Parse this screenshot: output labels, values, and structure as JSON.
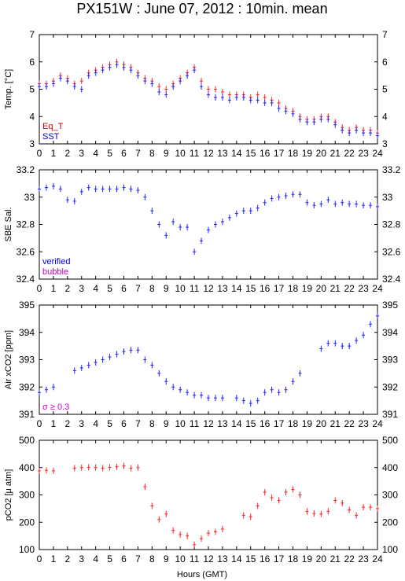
{
  "title": "PX151W : June 07, 2012 : 10min. mean",
  "x_axis": {
    "label": "Hours (GMT)",
    "min": 0,
    "max": 24,
    "ticks": [
      0,
      1,
      2,
      3,
      4,
      5,
      6,
      7,
      8,
      9,
      10,
      11,
      12,
      13,
      14,
      15,
      16,
      17,
      18,
      19,
      20,
      21,
      22,
      23,
      24
    ]
  },
  "chart_data": [
    {
      "type": "scatter",
      "id": "temp",
      "ylabel": "Temp. [°C]",
      "ylim": [
        3,
        7
      ],
      "yticks": [
        3,
        4,
        5,
        6,
        7
      ],
      "legend_entries": [
        {
          "text": "Eq_T",
          "color": "#cc0000"
        },
        {
          "text": "SST",
          "color": "#0000cc"
        }
      ],
      "series": [
        {
          "name": "Eq_T",
          "color": "#ff2020",
          "x": [
            0,
            0.5,
            1,
            1.5,
            2,
            2.5,
            3,
            3.5,
            4,
            4.5,
            5,
            5.5,
            6,
            6.5,
            7,
            7.5,
            8,
            8.5,
            9,
            9.5,
            10,
            10.5,
            11,
            11.5,
            12,
            12.5,
            13,
            13.5,
            14,
            14.5,
            15,
            15.5,
            16,
            16.5,
            17,
            17.5,
            18,
            18.5,
            19,
            19.5,
            20,
            20.5,
            21,
            21.5,
            22,
            22.5,
            23,
            23.5,
            24
          ],
          "y": [
            5.2,
            5.2,
            5.3,
            5.5,
            5.4,
            5.2,
            5.3,
            5.6,
            5.7,
            5.8,
            5.9,
            6.0,
            5.9,
            5.8,
            5.6,
            5.4,
            5.3,
            5.1,
            5.0,
            5.2,
            5.4,
            5.6,
            5.8,
            5.3,
            5.0,
            5.0,
            4.9,
            4.8,
            4.8,
            4.8,
            4.7,
            4.8,
            4.7,
            4.6,
            4.5,
            4.3,
            4.2,
            4.0,
            3.9,
            3.9,
            4.0,
            4.0,
            3.8,
            3.6,
            3.5,
            3.6,
            3.5,
            3.5,
            3.4
          ]
        },
        {
          "name": "SST",
          "color": "#2020ff",
          "x": [
            0,
            0.5,
            1,
            1.5,
            2,
            2.5,
            3,
            3.5,
            4,
            4.5,
            5,
            5.5,
            6,
            6.5,
            7,
            7.5,
            8,
            8.5,
            9,
            9.5,
            10,
            10.5,
            11,
            11.5,
            12,
            12.5,
            13,
            13.5,
            14,
            14.5,
            15,
            15.5,
            16,
            16.5,
            17,
            17.5,
            18,
            18.5,
            19,
            19.5,
            20,
            20.5,
            21,
            21.5,
            22,
            22.5,
            23,
            23.5,
            24
          ],
          "y": [
            5.1,
            5.1,
            5.2,
            5.4,
            5.3,
            5.1,
            5.0,
            5.5,
            5.6,
            5.7,
            5.8,
            5.9,
            5.8,
            5.7,
            5.5,
            5.3,
            5.2,
            4.9,
            4.8,
            5.1,
            5.3,
            5.5,
            5.7,
            5.1,
            4.8,
            4.7,
            4.7,
            4.6,
            4.7,
            4.7,
            4.6,
            4.6,
            4.5,
            4.5,
            4.3,
            4.2,
            4.1,
            3.9,
            3.8,
            3.8,
            3.9,
            3.9,
            3.7,
            3.5,
            3.4,
            3.5,
            3.4,
            3.4,
            3.3
          ]
        }
      ]
    },
    {
      "type": "scatter",
      "id": "sal",
      "ylabel": "SBE Sal.",
      "ylim": [
        32.4,
        33.2
      ],
      "yticks": [
        32.4,
        32.6,
        32.8,
        33,
        33.2
      ],
      "legend_entries": [
        {
          "text": "verified",
          "color": "#0000cc"
        },
        {
          "text": "bubble",
          "color": "#cc00cc"
        }
      ],
      "series": [
        {
          "name": "verified",
          "color": "#2020ff",
          "x": [
            0,
            0.5,
            1,
            1.5,
            2,
            2.5,
            3,
            3.5,
            4,
            4.5,
            5,
            5.5,
            6,
            6.5,
            7,
            7.5,
            8,
            8.5,
            9,
            9.5,
            10,
            10.5,
            11,
            11.5,
            12,
            12.5,
            13,
            13.5,
            14,
            14.5,
            15,
            15.5,
            16,
            16.5,
            17,
            17.5,
            18,
            18.5,
            19,
            19.5,
            20,
            20.5,
            21,
            21.5,
            22,
            22.5,
            23,
            23.5,
            24
          ],
          "y": [
            33.06,
            33.07,
            33.08,
            33.06,
            32.98,
            32.97,
            33.04,
            33.07,
            33.06,
            33.06,
            33.06,
            33.06,
            33.07,
            33.06,
            33.05,
            33.0,
            32.9,
            32.8,
            32.72,
            32.82,
            32.78,
            32.78,
            32.6,
            32.68,
            32.76,
            32.8,
            32.82,
            32.85,
            32.88,
            32.9,
            32.9,
            32.92,
            32.96,
            32.99,
            33.0,
            33.01,
            33.02,
            33.02,
            32.96,
            32.94,
            32.95,
            32.98,
            32.95,
            32.96,
            32.95,
            32.95,
            32.94,
            32.94,
            32.93
          ]
        }
      ]
    },
    {
      "type": "scatter",
      "id": "xco2",
      "ylabel": "Air xCO2 [ppm]",
      "ylim": [
        391,
        395
      ],
      "yticks": [
        391,
        392,
        393,
        394,
        395
      ],
      "legend_entries": [
        {
          "text": "σ ≥ 0.3",
          "color": "#cc00cc"
        }
      ],
      "series": [
        {
          "name": "",
          "color": "#2020ff",
          "x": [
            0,
            0.5,
            1,
            2.5,
            3,
            3.5,
            4,
            4.5,
            5,
            5.5,
            6,
            6.5,
            7,
            7.5,
            8,
            8.5,
            9,
            9.5,
            10,
            10.5,
            11,
            11.5,
            12,
            12.5,
            13,
            14,
            14.5,
            15,
            15.5,
            16,
            16.5,
            17,
            17.5,
            18,
            18.5,
            20,
            20.5,
            21,
            21.5,
            22,
            22.5,
            23,
            23.5,
            24
          ],
          "y": [
            391.8,
            391.9,
            392.0,
            392.6,
            392.7,
            392.8,
            392.9,
            393.0,
            393.1,
            393.2,
            393.3,
            393.35,
            393.35,
            393.0,
            392.8,
            392.5,
            392.2,
            392.0,
            391.9,
            391.8,
            391.7,
            391.7,
            391.6,
            391.6,
            391.6,
            391.6,
            391.5,
            391.4,
            391.5,
            391.8,
            391.9,
            391.8,
            391.9,
            392.2,
            392.5,
            393.4,
            393.6,
            393.6,
            393.5,
            393.5,
            393.7,
            393.9,
            394.3,
            394.6
          ]
        }
      ]
    },
    {
      "type": "scatter",
      "id": "pco2",
      "ylabel": "pCO2 [μ atm]",
      "ylim": [
        100,
        500
      ],
      "yticks": [
        100,
        200,
        300,
        400,
        500
      ],
      "legend_entries": [],
      "series": [
        {
          "name": "",
          "color": "#ff2020",
          "x": [
            0,
            0.5,
            1,
            2.5,
            3,
            3.5,
            4,
            4.5,
            5,
            5.5,
            6,
            6.5,
            7,
            7.5,
            8,
            8.5,
            9,
            9.5,
            10,
            10.5,
            11,
            11.5,
            12,
            12.5,
            13,
            14.5,
            15,
            15.5,
            16,
            16.5,
            17,
            17.5,
            18,
            18.5,
            19,
            19.5,
            20,
            20.5,
            21,
            21.5,
            22,
            22.5,
            23,
            23.5,
            24
          ],
          "y": [
            388,
            390,
            388,
            398,
            400,
            401,
            400,
            398,
            401,
            403,
            406,
            398,
            400,
            330,
            260,
            210,
            230,
            170,
            155,
            150,
            118,
            140,
            160,
            165,
            175,
            225,
            220,
            260,
            310,
            290,
            280,
            310,
            320,
            300,
            240,
            232,
            230,
            240,
            280,
            270,
            245,
            225,
            255,
            255,
            250
          ]
        }
      ]
    }
  ]
}
